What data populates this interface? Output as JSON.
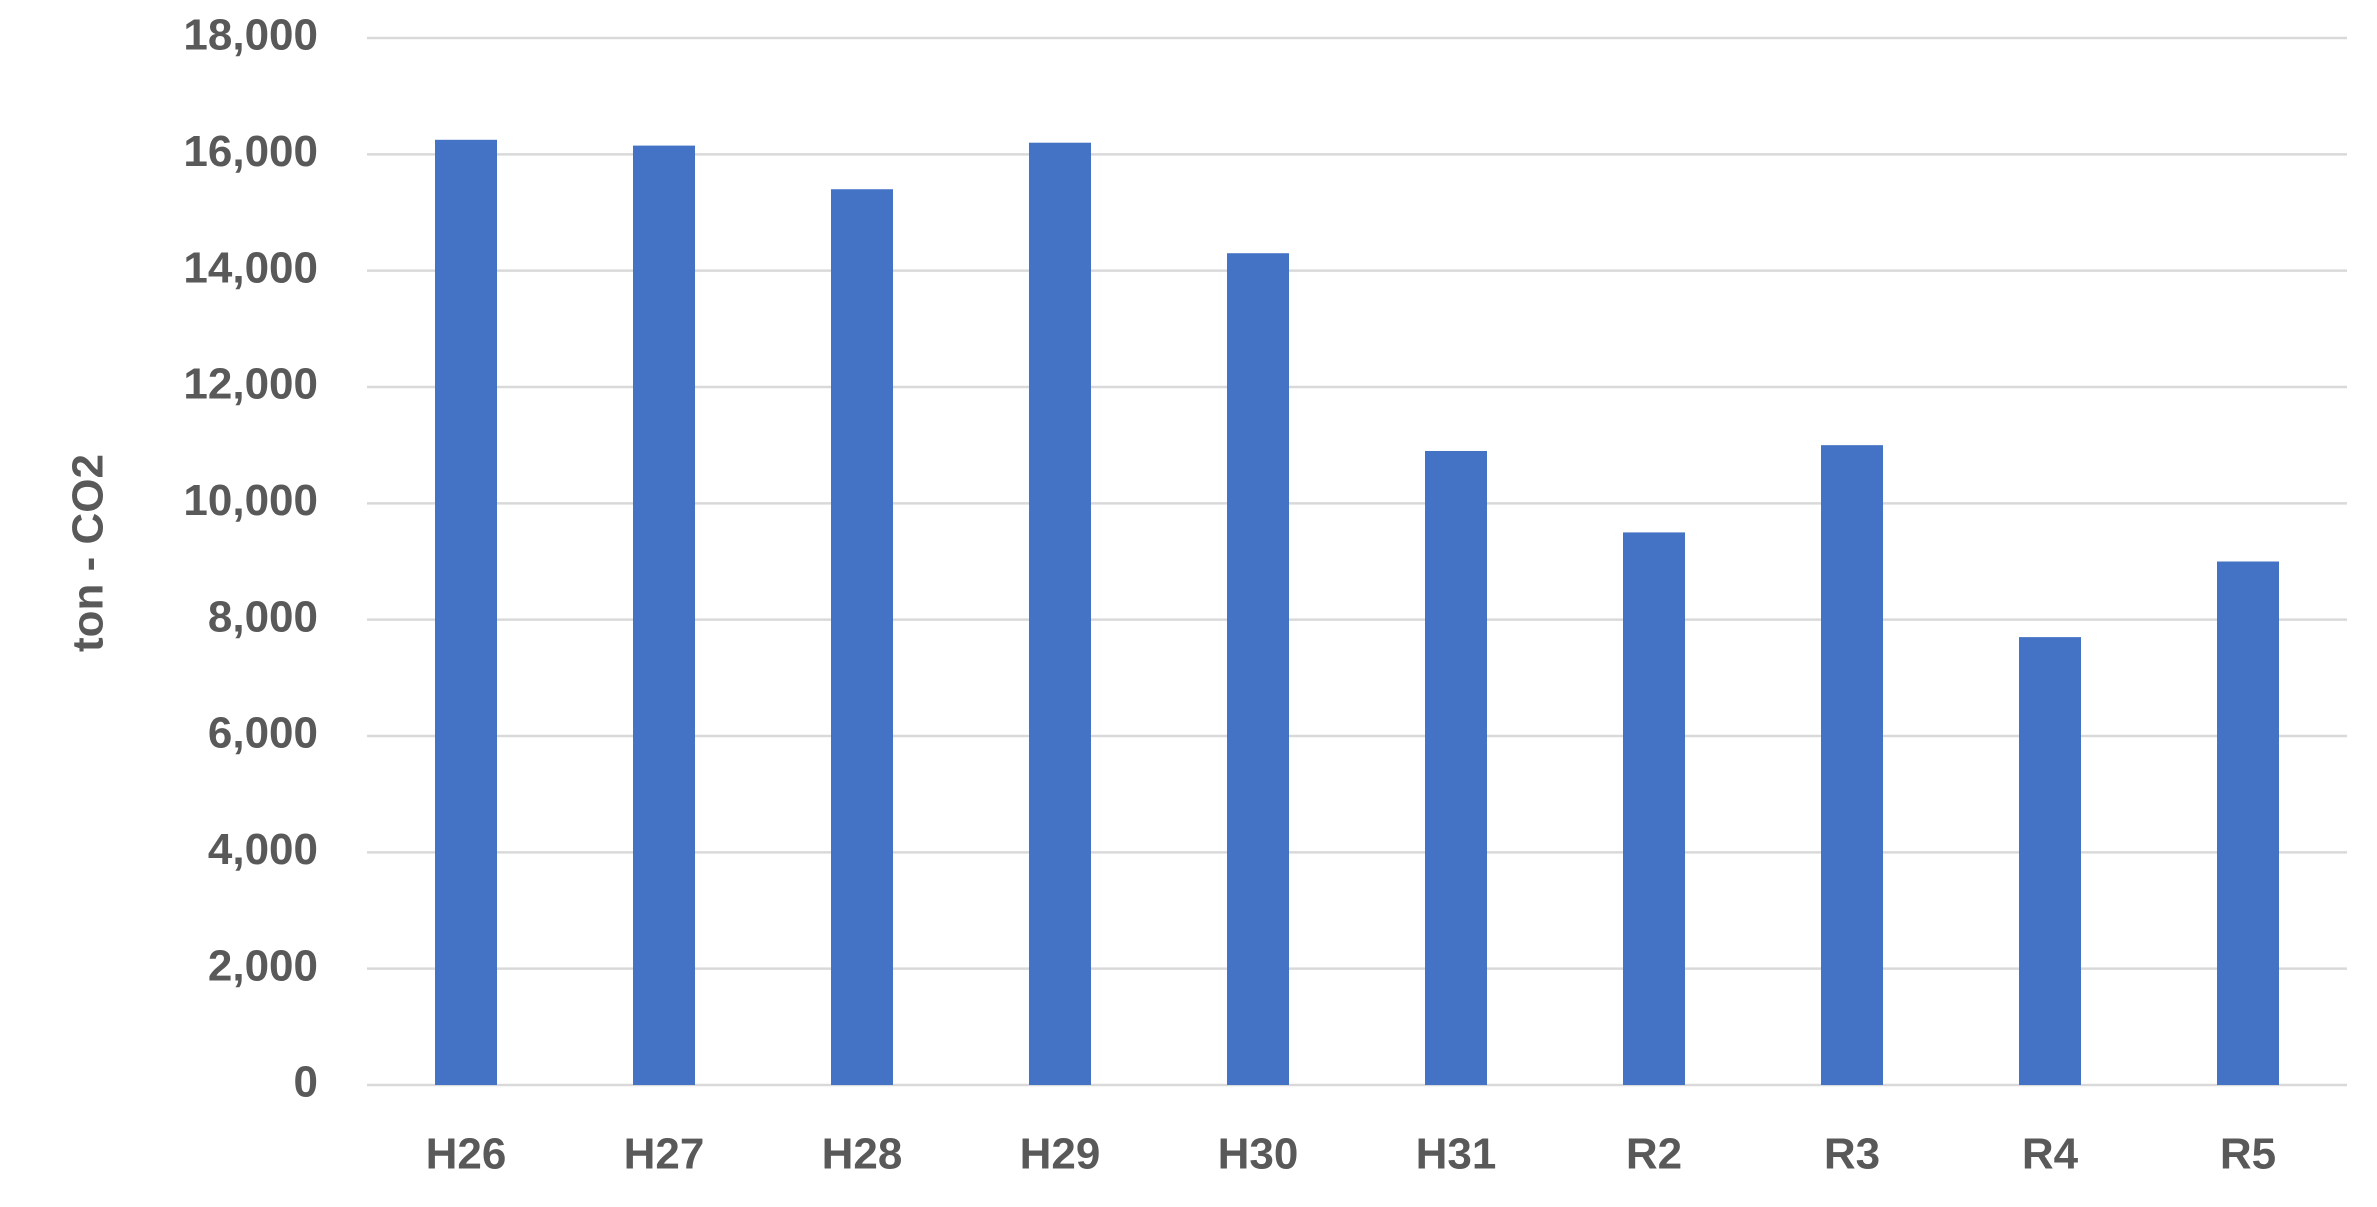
{
  "chart_data": {
    "type": "bar",
    "y_label": "ton - CO2",
    "categories": [
      "H26",
      "H27",
      "H28",
      "H29",
      "H30",
      "H31",
      "R2",
      "R3",
      "R4",
      "R5"
    ],
    "values": [
      16250,
      16150,
      15400,
      16200,
      14300,
      10900,
      9500,
      11000,
      7700,
      9000
    ],
    "color": "#4472c4",
    "ylim": [
      0,
      18000
    ],
    "yticks": [
      0,
      {
        "value": 2000,
        "label": "2,000"
      },
      {
        "value": 4000,
        "label": "4,000"
      },
      {
        "value": 6000,
        "label": "6,000"
      },
      {
        "value": 8000,
        "label": "8,000"
      },
      {
        "value": 10000,
        "label": "10,000"
      },
      {
        "value": 12000,
        "label": "12,000"
      },
      {
        "value": 14000,
        "label": "14,000"
      },
      {
        "value": 16000,
        "label": "16,000"
      },
      {
        "value": 18000,
        "label": "18,000"
      }
    ],
    "grid": true
  }
}
